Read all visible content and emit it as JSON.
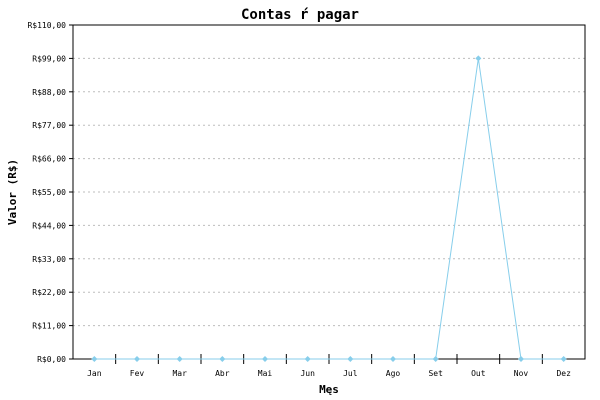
{
  "chart_data": {
    "type": "line",
    "title": "Contas ŕ pagar",
    "xlabel": "Męs",
    "ylabel": "Valor (R$)",
    "categories": [
      "Jan",
      "Fev",
      "Mar",
      "Abr",
      "Mai",
      "Jun",
      "Jul",
      "Ago",
      "Set",
      "Out",
      "Nov",
      "Dez"
    ],
    "series": [
      {
        "values": [
          0,
          0,
          0,
          0,
          0,
          0,
          0,
          0,
          0,
          99,
          0,
          0
        ]
      }
    ],
    "ylim": [
      0,
      110
    ],
    "yticks": [
      0,
      11,
      22,
      33,
      44,
      55,
      66,
      77,
      88,
      99,
      110
    ],
    "ytick_labels": [
      "R$0,00",
      "R$11,00",
      "R$22,00",
      "R$33,00",
      "R$44,00",
      "R$55,00",
      "R$66,00",
      "R$77,00",
      "R$88,00",
      "R$99,00",
      "R$110,00"
    ],
    "grid": true,
    "colors": {
      "series": "#87ceeb",
      "grid": "#bdbdbd",
      "axis": "#000000"
    }
  }
}
